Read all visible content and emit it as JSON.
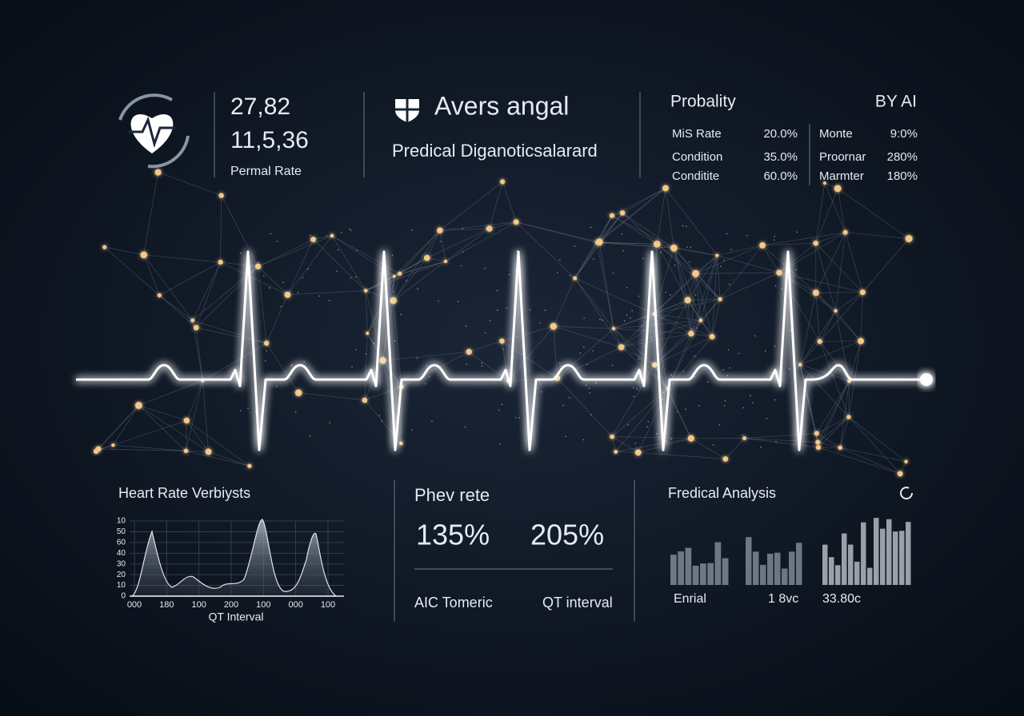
{
  "header_left": {
    "values": [
      "27,82",
      "11,5,36"
    ],
    "label": "Permal Rate"
  },
  "header_mid": {
    "title": "Avers angal",
    "subtitle": "Predical Diganoticsalarard"
  },
  "header_right": {
    "title": "Probality",
    "badge": "BY AI",
    "rows": [
      [
        "MiS Rate",
        "20.0%",
        "Monte",
        "9:0%"
      ],
      [
        "Condition",
        "35.0%",
        "Proornar",
        "280%"
      ],
      [
        "Conditite",
        "60.0%",
        "Marmter",
        "180%"
      ]
    ]
  },
  "bottom_left": {
    "title": "Heart Rate Verbiysts",
    "y_labels": [
      "10",
      "50",
      "60",
      "40",
      "30",
      "20",
      "10",
      "0"
    ],
    "x_labels": [
      "000",
      "180",
      "100",
      "200",
      "100",
      "000",
      "100"
    ],
    "axis_title": "QT Interval"
  },
  "bottom_mid": {
    "title": "Phev rete",
    "values": [
      "135%",
      "205%"
    ],
    "labels": [
      "AIC Tomeric",
      "QT interval"
    ]
  },
  "bottom_right": {
    "title": "Fredical Analysis",
    "labels": [
      "Enrial",
      "1 8vc",
      "33.80c"
    ]
  }
}
